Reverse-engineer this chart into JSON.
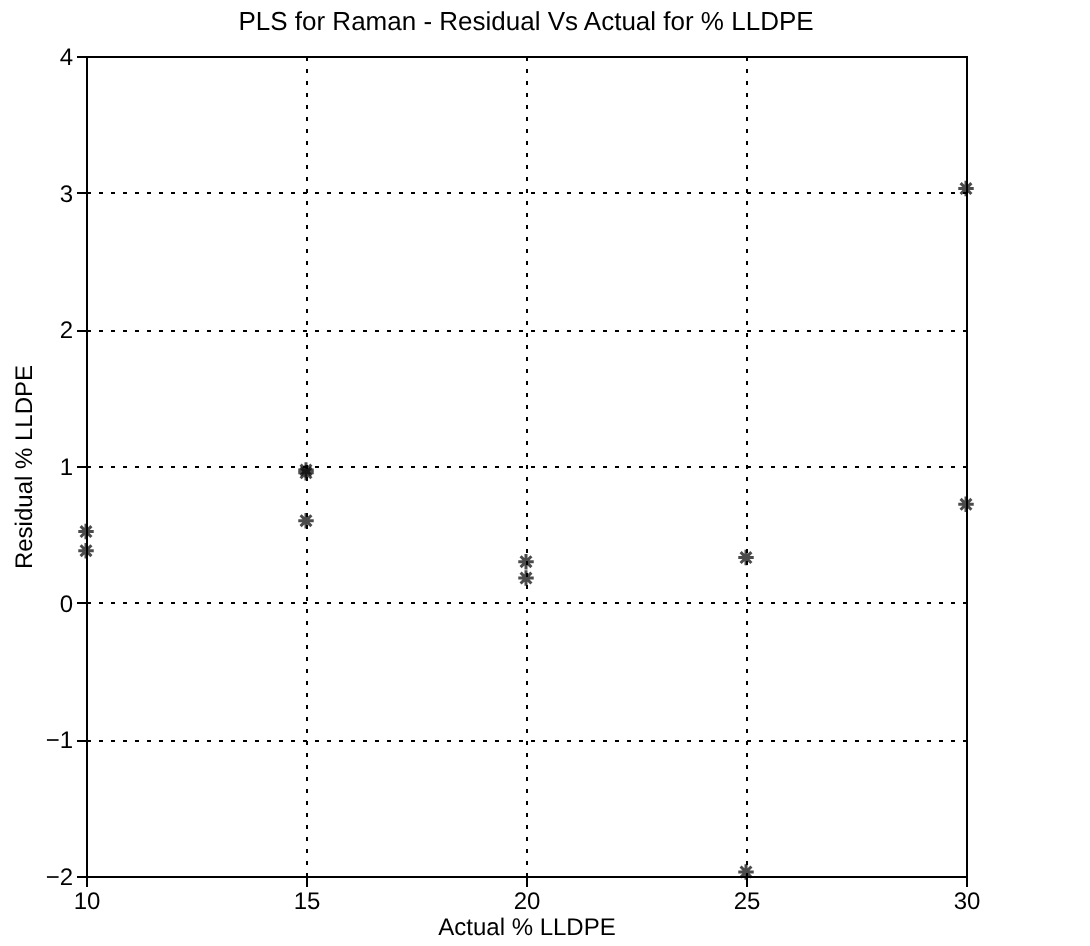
{
  "chart_data": {
    "type": "scatter",
    "title": "PLS for Raman - Residual Vs  Actual for % LLDPE",
    "xlabel": "Actual % LLDPE",
    "ylabel": "Residual % LLDPE",
    "x": [
      10,
      10,
      15,
      15,
      15,
      20,
      20,
      25,
      25,
      30,
      30
    ],
    "values": [
      0.52,
      0.38,
      0.97,
      0.95,
      0.6,
      0.3,
      0.18,
      0.33,
      -1.97,
      3.03,
      0.72
    ],
    "color": "#000000",
    "marker": "cross",
    "grid": true,
    "line_style": "dotted",
    "xlim": [
      10,
      30
    ],
    "xticks": [
      10,
      15,
      20,
      25,
      30
    ],
    "ylim": [
      -2,
      4
    ],
    "yticks": [
      -2,
      -1,
      0,
      1,
      2,
      3,
      4
    ]
  }
}
